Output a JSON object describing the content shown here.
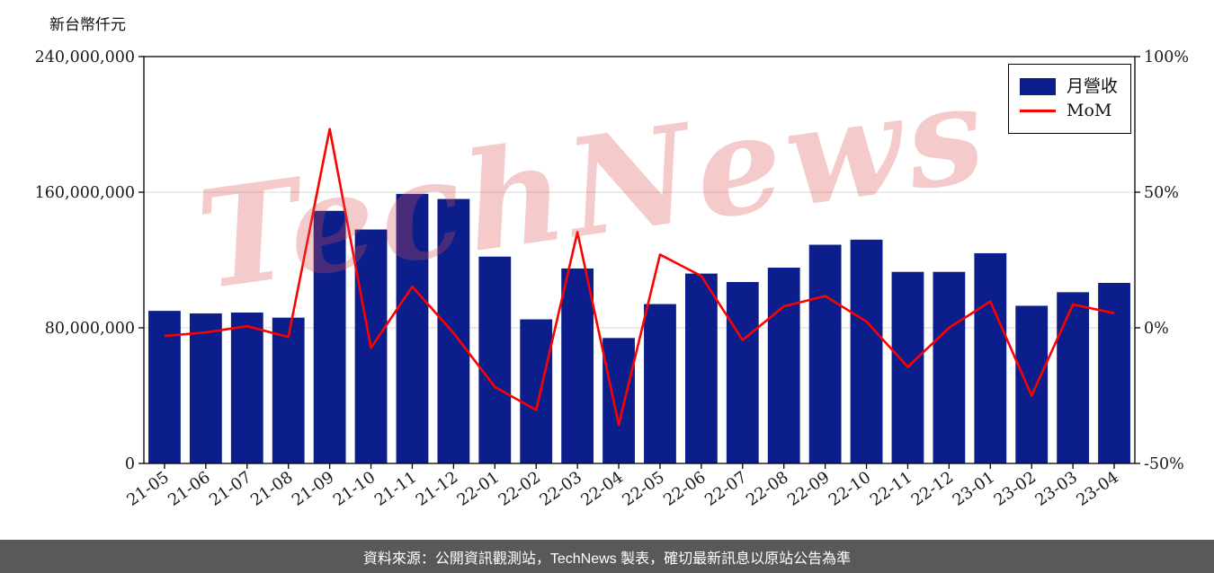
{
  "axis_title": "新台幣仟元",
  "watermark": "TechNews",
  "footer": "資料來源：公開資訊觀測站，TechNews 製表，確切最新訊息以原站公告為準",
  "legend": {
    "bar_label": "月營收",
    "line_label": "MoM"
  },
  "colors": {
    "bar": "#0b1e8c",
    "line": "#ff0000",
    "grid": "#d8d8d8",
    "axis": "#000000",
    "tick_text": "#1a1a1a",
    "footer_bg": "#58595b",
    "watermark": "rgba(217,79,79,0.30)"
  },
  "chart_data": {
    "type": "bar+line",
    "title": "",
    "ylabel_left": "新台幣仟元",
    "categories": [
      "21-05",
      "21-06",
      "21-07",
      "21-08",
      "21-09",
      "21-10",
      "21-11",
      "21-12",
      "22-01",
      "22-02",
      "22-03",
      "22-04",
      "22-05",
      "22-06",
      "22-07",
      "22-08",
      "22-09",
      "22-10",
      "22-11",
      "22-12",
      "23-01",
      "23-02",
      "23-03",
      "23-04"
    ],
    "series": [
      {
        "name": "月營收",
        "type": "bar",
        "axis": "left",
        "values": [
          90000000,
          88500000,
          89000000,
          86000000,
          149000000,
          138000000,
          159000000,
          156000000,
          122000000,
          85000000,
          115000000,
          74000000,
          94000000,
          112000000,
          107000000,
          115500000,
          129000000,
          132000000,
          113000000,
          113000000,
          124000000,
          93000000,
          101000000,
          106500000
        ]
      },
      {
        "name": "MoM",
        "type": "line",
        "axis": "right",
        "values": [
          -3.0,
          -1.7,
          0.6,
          -3.4,
          73.3,
          -7.4,
          15.2,
          -1.9,
          -21.8,
          -30.3,
          35.3,
          -35.7,
          27.0,
          19.1,
          -4.5,
          7.9,
          11.7,
          2.3,
          -14.4,
          0.0,
          9.7,
          -25.0,
          8.6,
          5.4
        ]
      }
    ],
    "left_axis": {
      "range": [
        0,
        240000000
      ],
      "ticks": [
        0,
        80000000,
        160000000,
        240000000
      ]
    },
    "right_axis": {
      "range": [
        -50,
        100
      ],
      "ticks": [
        -50,
        0,
        50,
        100
      ],
      "suffix": "%"
    },
    "grid": "horizontal",
    "legend_position": "upper-right"
  }
}
